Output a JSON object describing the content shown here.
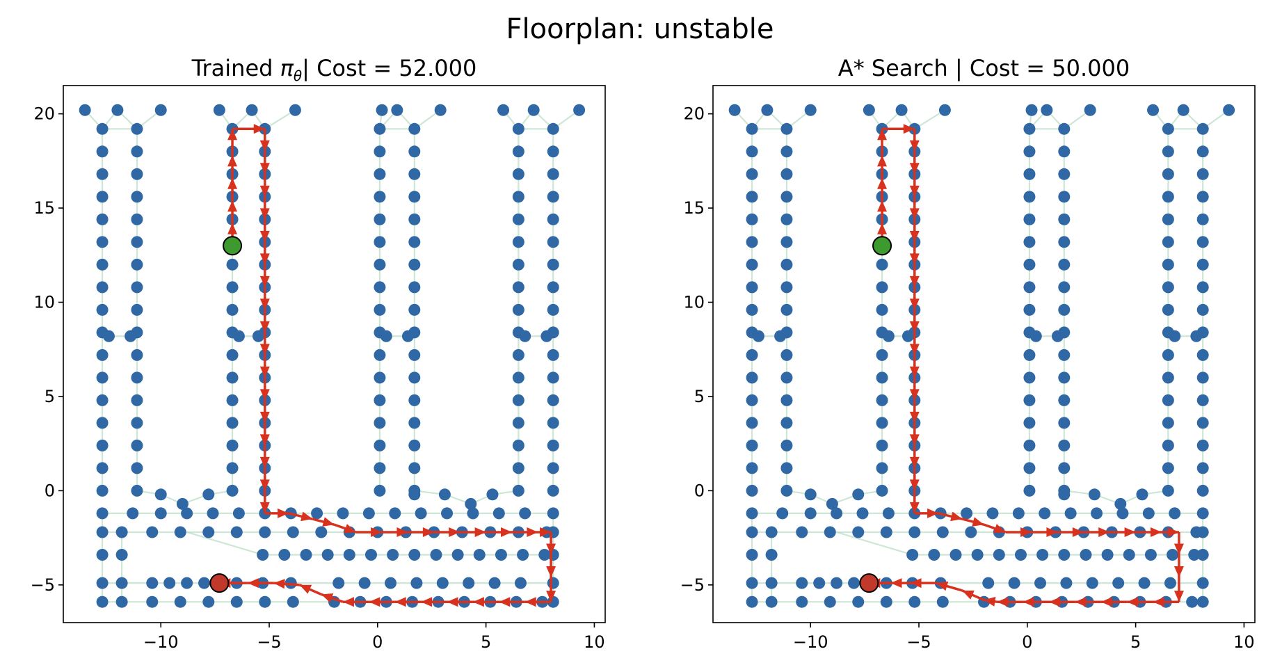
{
  "figure": {
    "suptitle": "Floorplan: unstable"
  },
  "colors": {
    "node": "#2f68a5",
    "edge": "#b8dcc5",
    "path": "#d8311d",
    "start": "#3d9a2e",
    "goal": "#c0392b"
  },
  "chart_data": [
    {
      "type": "scatter",
      "title_prefix": "Trained ",
      "title_symbol": "π",
      "title_subscript": "θ",
      "title_suffix": "| Cost = 52.000",
      "xlim": [
        -14.5,
        10.5
      ],
      "ylim": [
        -7,
        21.5
      ],
      "xticks": [
        -10,
        -5,
        0,
        5,
        10
      ],
      "xtick_labels": [
        "−10",
        "−5",
        "0",
        "5",
        "10"
      ],
      "yticks": [
        -5,
        0,
        5,
        10,
        15,
        20
      ],
      "ytick_labels": [
        "−5",
        "0",
        "5",
        "10",
        "15",
        "20"
      ],
      "start": [
        -6.7,
        13.0
      ],
      "goal": [
        -7.3,
        -4.9
      ],
      "path": [
        [
          -6.7,
          13.0
        ],
        [
          -6.7,
          14.2
        ],
        [
          -6.7,
          15.4
        ],
        [
          -6.7,
          16.6
        ],
        [
          -6.7,
          17.8
        ],
        [
          -6.7,
          19.2
        ],
        [
          -5.2,
          19.2
        ],
        [
          -5.2,
          18.0
        ],
        [
          -5.2,
          16.8
        ],
        [
          -5.2,
          15.6
        ],
        [
          -5.2,
          14.4
        ],
        [
          -5.2,
          13.2
        ],
        [
          -5.2,
          12.0
        ],
        [
          -5.2,
          10.8
        ],
        [
          -5.2,
          9.6
        ],
        [
          -5.2,
          8.4
        ],
        [
          -5.2,
          7.2
        ],
        [
          -5.2,
          6.0
        ],
        [
          -5.2,
          4.8
        ],
        [
          -5.2,
          3.6
        ],
        [
          -5.2,
          2.4
        ],
        [
          -5.2,
          1.2
        ],
        [
          -5.2,
          0.0
        ],
        [
          -5.2,
          -1.2
        ],
        [
          -4.1,
          -1.2
        ],
        [
          -3.0,
          -1.5
        ],
        [
          -2.0,
          -1.8
        ],
        [
          -1.0,
          -2.2
        ],
        [
          0.2,
          -2.2
        ],
        [
          1.4,
          -2.2
        ],
        [
          2.6,
          -2.2
        ],
        [
          3.8,
          -2.2
        ],
        [
          5.0,
          -2.2
        ],
        [
          6.2,
          -2.2
        ],
        [
          7.4,
          -2.2
        ],
        [
          8.0,
          -2.2
        ],
        [
          8.0,
          -3.4
        ],
        [
          8.0,
          -4.6
        ],
        [
          8.0,
          -5.9
        ],
        [
          6.8,
          -5.9
        ],
        [
          5.6,
          -5.9
        ],
        [
          4.4,
          -5.9
        ],
        [
          3.2,
          -5.9
        ],
        [
          2.0,
          -5.9
        ],
        [
          0.8,
          -5.9
        ],
        [
          -0.4,
          -5.9
        ],
        [
          -1.6,
          -5.9
        ],
        [
          -2.6,
          -5.5
        ],
        [
          -3.6,
          -5.0
        ],
        [
          -4.8,
          -4.9
        ],
        [
          -6.0,
          -4.9
        ],
        [
          -7.3,
          -4.9
        ]
      ]
    },
    {
      "type": "scatter",
      "title_prefix": "A* Search | Cost = 50.000",
      "title_symbol": "",
      "title_subscript": "",
      "title_suffix": "",
      "xlim": [
        -14.5,
        10.5
      ],
      "ylim": [
        -7,
        21.5
      ],
      "xticks": [
        -10,
        -5,
        0,
        5,
        10
      ],
      "xtick_labels": [
        "−10",
        "−5",
        "0",
        "5",
        "10"
      ],
      "yticks": [
        -5,
        0,
        5,
        10,
        15,
        20
      ],
      "ytick_labels": [
        "−5",
        "0",
        "5",
        "10",
        "15",
        "20"
      ],
      "start": [
        -6.7,
        13.0
      ],
      "goal": [
        -7.3,
        -4.9
      ],
      "path": [
        [
          -6.7,
          13.0
        ],
        [
          -6.7,
          14.2
        ],
        [
          -6.7,
          15.4
        ],
        [
          -6.7,
          16.6
        ],
        [
          -6.7,
          17.8
        ],
        [
          -6.7,
          19.2
        ],
        [
          -5.2,
          19.2
        ],
        [
          -5.2,
          18.0
        ],
        [
          -5.2,
          16.8
        ],
        [
          -5.2,
          15.6
        ],
        [
          -5.2,
          14.4
        ],
        [
          -5.2,
          13.2
        ],
        [
          -5.2,
          12.0
        ],
        [
          -5.2,
          10.8
        ],
        [
          -5.2,
          9.6
        ],
        [
          -5.2,
          8.4
        ],
        [
          -5.2,
          7.2
        ],
        [
          -5.2,
          6.0
        ],
        [
          -5.2,
          4.8
        ],
        [
          -5.2,
          3.6
        ],
        [
          -5.2,
          2.4
        ],
        [
          -5.2,
          1.2
        ],
        [
          -5.2,
          0.0
        ],
        [
          -5.2,
          -1.2
        ],
        [
          -4.1,
          -1.2
        ],
        [
          -3.0,
          -1.5
        ],
        [
          -2.0,
          -1.8
        ],
        [
          -1.0,
          -2.2
        ],
        [
          0.2,
          -2.2
        ],
        [
          1.4,
          -2.2
        ],
        [
          2.6,
          -2.2
        ],
        [
          3.8,
          -2.2
        ],
        [
          5.0,
          -2.2
        ],
        [
          6.2,
          -2.2
        ],
        [
          7.0,
          -2.2
        ],
        [
          7.0,
          -3.4
        ],
        [
          7.0,
          -4.6
        ],
        [
          7.0,
          -5.9
        ],
        [
          5.8,
          -5.9
        ],
        [
          4.6,
          -5.9
        ],
        [
          3.4,
          -5.9
        ],
        [
          2.2,
          -5.9
        ],
        [
          1.0,
          -5.9
        ],
        [
          -0.2,
          -5.9
        ],
        [
          -1.4,
          -5.9
        ],
        [
          -2.0,
          -5.8
        ],
        [
          -3.0,
          -5.3
        ],
        [
          -4.2,
          -4.9
        ],
        [
          -5.4,
          -4.9
        ],
        [
          -6.3,
          -4.9
        ],
        [
          -7.3,
          -4.9
        ]
      ]
    }
  ]
}
